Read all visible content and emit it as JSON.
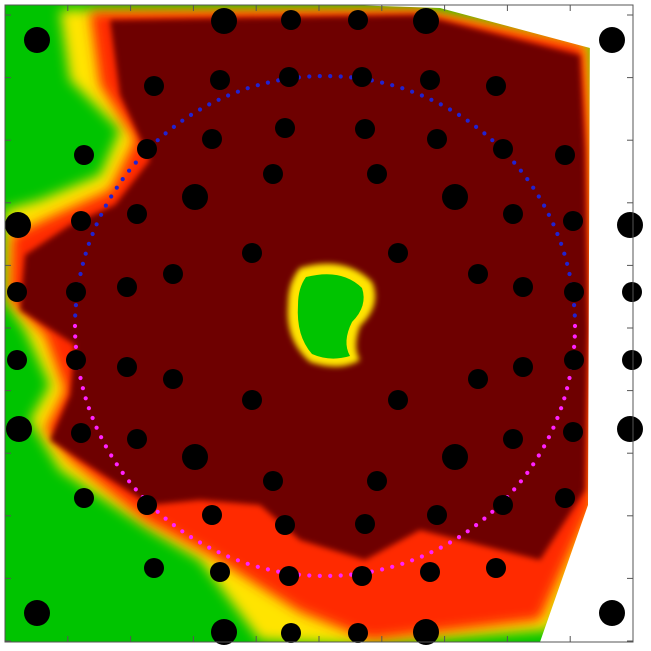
{
  "figure": {
    "colors": {
      "background": "#00c400",
      "low": "#00c400",
      "mid": "#ffe400",
      "warm": "#ff2a00",
      "core": "#6e0000",
      "hole": "#00c400",
      "electrode": "#000000",
      "circle_top": "#2222d0",
      "circle_bottom": "#ff22ff",
      "mask": "#ffffff",
      "frame": "#555555"
    }
  }
}
